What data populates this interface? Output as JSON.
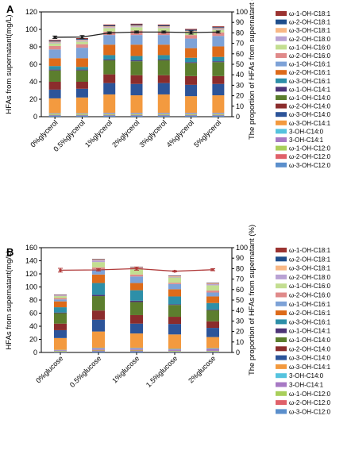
{
  "chart_data": [
    {
      "type": "bar",
      "panel_label": "A",
      "stacked": true,
      "categories": [
        "0%glycerol",
        "0.5%glycerol",
        "1%glycerol",
        "2%glycerol",
        "3%glycerol",
        "4%glycerol",
        "5%glycerol"
      ],
      "ylabel": "HFAs from supernatant(mg/L)",
      "ylim": [
        0,
        120
      ],
      "yticks": [
        0,
        20,
        40,
        60,
        80,
        100,
        120
      ],
      "y2label": "The proportion of HFAs from supernatant (%)",
      "y2lim": [
        0,
        100
      ],
      "y2ticks": [
        0,
        10,
        20,
        30,
        40,
        50,
        60,
        70,
        80,
        90,
        100
      ],
      "legend_position": "right",
      "series": [
        {
          "name": "ω-3-OH-C12:0",
          "color": "#5b8fcc",
          "values": [
            1.5,
            1.5,
            1.5,
            1.5,
            1.5,
            1.5,
            1.5
          ]
        },
        {
          "name": "ω-2-OH-C12:0",
          "color": "#e0616a",
          "values": [
            0.5,
            0.5,
            0.5,
            0.5,
            0.5,
            0.5,
            0.5
          ]
        },
        {
          "name": "ω-1-OH-C12:0",
          "color": "#a8cf5a",
          "values": [
            1,
            1,
            1,
            1,
            1,
            1,
            1
          ]
        },
        {
          "name": "3-OH-C14:1",
          "color": "#a779c4",
          "values": [
            0.5,
            0.5,
            1,
            1,
            1,
            1,
            1
          ]
        },
        {
          "name": "3-OH-C14:0",
          "color": "#55c3de",
          "values": [
            0.5,
            0.5,
            0.5,
            0.5,
            0.5,
            0.5,
            0.5
          ]
        },
        {
          "name": "ω-3-OH-C14:1",
          "color": "#f39a3f",
          "values": [
            17,
            18,
            21,
            20,
            21,
            19,
            20
          ]
        },
        {
          "name": "ω-3-OH-C14:0",
          "color": "#2c5499",
          "values": [
            10,
            10,
            13,
            13,
            13,
            13,
            13
          ]
        },
        {
          "name": "ω-2-OH-C14:0",
          "color": "#8b2c2c",
          "values": [
            9,
            8,
            10,
            10,
            9,
            10,
            9
          ]
        },
        {
          "name": "ω-1-OH-C14:0",
          "color": "#5c7e2e",
          "values": [
            13,
            13,
            16,
            16,
            17,
            15,
            16
          ]
        },
        {
          "name": "ω-1-OH-C14:1",
          "color": "#4e3578",
          "values": [
            1,
            1,
            1,
            1,
            1,
            1,
            1
          ]
        },
        {
          "name": "ω-3-OH-C16:1",
          "color": "#2d8fa8",
          "values": [
            4,
            3,
            5,
            5,
            5,
            5,
            5
          ]
        },
        {
          "name": "ω-2-OH-C16:1",
          "color": "#dd6b1a",
          "values": [
            9,
            10,
            12,
            13,
            12,
            11,
            12
          ]
        },
        {
          "name": "ω-1-OH-C16:1",
          "color": "#7da2d7",
          "values": [
            10,
            12,
            11,
            11,
            11,
            11,
            12
          ]
        },
        {
          "name": "ω-2-OH-C16:0",
          "color": "#e08a8a",
          "values": [
            4,
            4,
            4,
            5,
            4,
            4,
            4
          ]
        },
        {
          "name": "ω-1-OH-C16:0",
          "color": "#c3de91",
          "values": [
            3,
            3,
            4,
            4,
            4,
            3,
            3
          ]
        },
        {
          "name": "ω-2-OH-C18:0",
          "color": "#b9a2d4",
          "values": [
            1,
            1,
            1,
            1,
            1,
            1,
            1
          ]
        },
        {
          "name": "ω-3-OH-C18:1",
          "color": "#f8b886",
          "values": [
            1,
            1,
            1,
            1,
            1,
            1,
            1
          ]
        },
        {
          "name": "ω-2-OH-C18:1",
          "color": "#1f4e8c",
          "values": [
            1,
            1,
            1,
            1,
            1,
            1,
            1
          ]
        },
        {
          "name": "ω-1-OH-C18:1",
          "color": "#9b3331",
          "values": [
            1,
            1,
            1,
            1,
            1,
            1,
            1
          ]
        }
      ],
      "line": {
        "y_axis": "right",
        "color": "#222222",
        "values": [
          75.8,
          76,
          80,
          80.8,
          80.8,
          80.3,
          80.8
        ],
        "errors": [
          1.2,
          1.5,
          1,
          1,
          1,
          1.5,
          1
        ]
      }
    },
    {
      "type": "bar",
      "panel_label": "B",
      "stacked": true,
      "categories": [
        "0%glucose",
        "0.5%glucose",
        "1%glucose",
        "1.5%glucose",
        "2%glucose"
      ],
      "ylabel": "HFAs from supernatant(mg/L)",
      "ylim": [
        0,
        160
      ],
      "yticks": [
        0,
        20,
        40,
        60,
        80,
        100,
        120,
        140,
        160
      ],
      "y2label": "The proportion of HFAs from supernatant (%)",
      "y2lim": [
        0,
        100
      ],
      "y2ticks": [
        0,
        10,
        20,
        30,
        40,
        50,
        60,
        70,
        80,
        90,
        100
      ],
      "legend_position": "right",
      "series": [
        {
          "name": "ω-3-OH-C12:0",
          "color": "#5b8fcc",
          "values": [
            1,
            2,
            2,
            1,
            1
          ]
        },
        {
          "name": "ω-2-OH-C12:0",
          "color": "#e0616a",
          "values": [
            0.5,
            1,
            1,
            0.5,
            0.5
          ]
        },
        {
          "name": "ω-1-OH-C12:0",
          "color": "#a8cf5a",
          "values": [
            1,
            1,
            1,
            1,
            1
          ]
        },
        {
          "name": "3-OH-C14:1",
          "color": "#a779c4",
          "values": [
            1,
            2,
            2,
            2,
            3
          ]
        },
        {
          "name": "3-OH-C14:0",
          "color": "#55c3de",
          "values": [
            0.5,
            1,
            1,
            1,
            1
          ]
        },
        {
          "name": "ω-3-OH-C14:1",
          "color": "#f39a3f",
          "values": [
            18,
            25,
            22,
            22,
            17
          ]
        },
        {
          "name": "ω-3-OH-C14:0",
          "color": "#2c5499",
          "values": [
            12,
            18,
            15,
            16,
            14
          ]
        },
        {
          "name": "ω-2-OH-C14:0",
          "color": "#8b2c2c",
          "values": [
            10,
            14,
            13,
            11,
            10
          ]
        },
        {
          "name": "ω-1-OH-C14:0",
          "color": "#5c7e2e",
          "values": [
            16,
            22,
            20,
            18,
            17
          ]
        },
        {
          "name": "ω-1-OH-C14:1",
          "color": "#4e3578",
          "values": [
            1,
            2,
            2,
            1,
            1
          ]
        },
        {
          "name": "ω-3-OH-C16:1",
          "color": "#2d8fa8",
          "values": [
            8,
            18,
            16,
            12,
            10
          ]
        },
        {
          "name": "ω-2-OH-C16:1",
          "color": "#dd6b1a",
          "values": [
            9,
            13,
            11,
            11,
            10
          ]
        },
        {
          "name": "ω-1-OH-C16:1",
          "color": "#7da2d7",
          "values": [
            3,
            8,
            10,
            8,
            6
          ]
        },
        {
          "name": "ω-2-OH-C16:0",
          "color": "#e08a8a",
          "values": [
            2,
            3,
            3,
            2,
            3
          ]
        },
        {
          "name": "ω-1-OH-C16:0",
          "color": "#c3de91",
          "values": [
            3,
            8,
            8,
            8,
            8
          ]
        },
        {
          "name": "ω-2-OH-C18:0",
          "color": "#b9a2d4",
          "values": [
            1,
            3,
            2,
            1,
            2
          ]
        },
        {
          "name": "ω-3-OH-C18:1",
          "color": "#f8b886",
          "values": [
            0.5,
            1,
            1,
            1,
            1
          ]
        },
        {
          "name": "ω-2-OH-C18:1",
          "color": "#1f4e8c",
          "values": [
            0.5,
            0.5,
            0.5,
            0.5,
            0.5
          ]
        },
        {
          "name": "ω-1-OH-C18:1",
          "color": "#9b3331",
          "values": [
            0.5,
            0.5,
            0.5,
            0.5,
            0.5
          ]
        }
      ],
      "line": {
        "y_axis": "right",
        "color": "#b03a3a",
        "values": [
          78.5,
          78.8,
          80,
          77.5,
          79
        ],
        "errors": [
          1.8,
          1,
          1.5,
          0.5,
          1
        ]
      }
    }
  ]
}
